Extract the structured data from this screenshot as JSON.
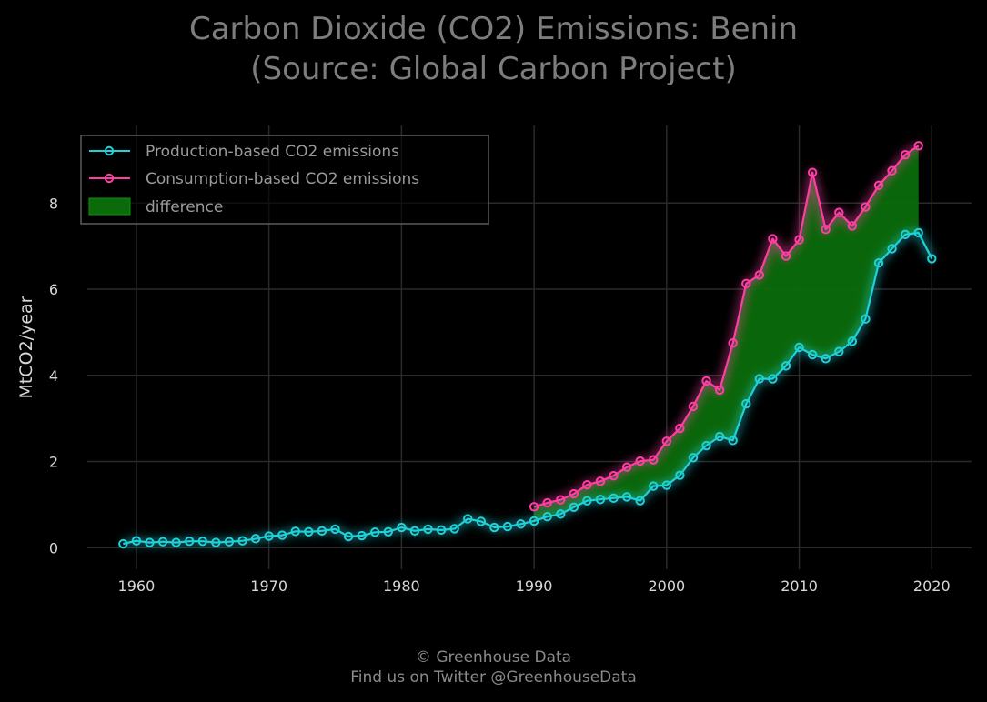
{
  "title_line1": "Carbon Dioxide (CO2) Emissions: Benin",
  "title_line2": "(Source: Global Carbon Project)",
  "footer_line1": "© Greenhouse Data",
  "footer_line2": "Find us on Twitter @GreenhouseData",
  "colors": {
    "background": "#000000",
    "production": "#1fd1d9",
    "consumption": "#ff3ea5",
    "difference": "#0b6b0b",
    "grid": "#2a2a2a"
  },
  "chart_data": {
    "type": "line",
    "title": "Carbon Dioxide (CO2) Emissions: Benin (Source: Global Carbon Project)",
    "xlabel": "",
    "ylabel": "MtCO2/year",
    "xlim": [
      1956.3,
      2023
    ],
    "ylim": [
      -0.5,
      9.8
    ],
    "xticks": [
      1960,
      1970,
      1980,
      1990,
      2000,
      2010,
      2020
    ],
    "yticks": [
      0,
      2,
      4,
      6,
      8
    ],
    "grid": true,
    "legend_position": "top-left",
    "legend": [
      "Production-based CO2 emissions",
      "Consumption-based CO2 emissions",
      "difference"
    ],
    "series": [
      {
        "name": "Production-based CO2 emissions",
        "x": [
          1959,
          1960,
          1961,
          1962,
          1963,
          1964,
          1965,
          1966,
          1967,
          1968,
          1969,
          1970,
          1971,
          1972,
          1973,
          1974,
          1975,
          1976,
          1977,
          1978,
          1979,
          1980,
          1981,
          1982,
          1983,
          1984,
          1985,
          1986,
          1987,
          1988,
          1989,
          1990,
          1991,
          1992,
          1993,
          1994,
          1995,
          1996,
          1997,
          1998,
          1999,
          2000,
          2001,
          2002,
          2003,
          2004,
          2005,
          2006,
          2007,
          2008,
          2009,
          2010,
          2011,
          2012,
          2013,
          2014,
          2015,
          2016,
          2017,
          2018,
          2019,
          2020
        ],
        "y": [
          0.09,
          0.16,
          0.12,
          0.14,
          0.12,
          0.15,
          0.15,
          0.12,
          0.14,
          0.16,
          0.21,
          0.27,
          0.29,
          0.38,
          0.37,
          0.39,
          0.43,
          0.26,
          0.28,
          0.36,
          0.37,
          0.47,
          0.39,
          0.43,
          0.41,
          0.44,
          0.67,
          0.61,
          0.47,
          0.49,
          0.55,
          0.62,
          0.72,
          0.78,
          0.94,
          1.09,
          1.12,
          1.15,
          1.18,
          1.09,
          1.43,
          1.45,
          1.68,
          2.09,
          2.37,
          2.58,
          2.49,
          3.34,
          3.92,
          3.92,
          4.22,
          4.65,
          4.48,
          4.39,
          4.55,
          4.79,
          5.31,
          6.61,
          6.94,
          7.27,
          7.31,
          6.71
        ]
      },
      {
        "name": "Consumption-based CO2 emissions",
        "x": [
          1990,
          1991,
          1992,
          1993,
          1994,
          1995,
          1996,
          1997,
          1998,
          1999,
          2000,
          2001,
          2002,
          2003,
          2004,
          2005,
          2006,
          2007,
          2008,
          2009,
          2010,
          2011,
          2012,
          2013,
          2014,
          2015,
          2016,
          2017,
          2018,
          2019
        ],
        "y": [
          0.95,
          1.04,
          1.11,
          1.25,
          1.46,
          1.54,
          1.67,
          1.87,
          2.01,
          2.04,
          2.47,
          2.77,
          3.28,
          3.87,
          3.66,
          4.75,
          6.13,
          6.33,
          7.17,
          6.77,
          7.15,
          8.71,
          7.39,
          7.78,
          7.47,
          7.91,
          8.41,
          8.75,
          9.12,
          9.33
        ]
      }
    ]
  }
}
